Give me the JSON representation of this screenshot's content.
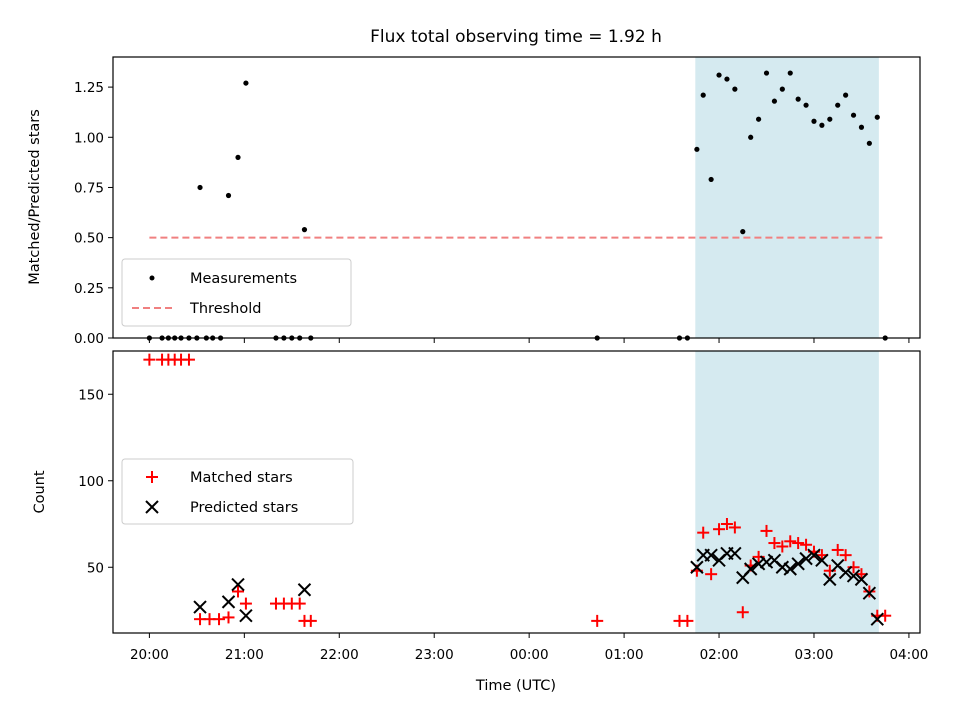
{
  "chart_data": [
    {
      "type": "scatter",
      "title": "Flux total observing time = 1.92 h",
      "xlabel": "",
      "ylabel": "Matched/Predicted stars",
      "xlim": [
        "19:37",
        "04:07"
      ],
      "ylim": [
        0,
        1.4
      ],
      "yticks": [
        0.0,
        0.25,
        0.5,
        0.75,
        1.0,
        1.25
      ],
      "ytick_labels": [
        "0.00",
        "0.25",
        "0.50",
        "0.75",
        "1.00",
        "1.25"
      ],
      "x_axis": "Time (UTC)",
      "shaded_interval": {
        "start": "01:45",
        "end": "03:41",
        "color": "#d5eaf0"
      },
      "legend": {
        "placement": "lower-left",
        "entries": [
          "Measurements",
          "Threshold"
        ]
      },
      "series": [
        {
          "name": "Measurements",
          "marker": "dot",
          "color": "#000000",
          "points": [
            [
              "20:00",
              0
            ],
            [
              "20:08",
              0
            ],
            [
              "20:12",
              0
            ],
            [
              "20:16",
              0
            ],
            [
              "20:20",
              0
            ],
            [
              "20:25",
              0
            ],
            [
              "20:30",
              0
            ],
            [
              "20:32",
              0.75
            ],
            [
              "20:36",
              0
            ],
            [
              "20:40",
              0
            ],
            [
              "20:45",
              0
            ],
            [
              "20:50",
              0.71
            ],
            [
              "20:56",
              0.9
            ],
            [
              "21:01",
              1.27
            ],
            [
              "21:20",
              0
            ],
            [
              "21:25",
              0
            ],
            [
              "21:30",
              0
            ],
            [
              "21:35",
              0
            ],
            [
              "21:38",
              0.54
            ],
            [
              "21:42",
              0
            ],
            [
              "00:43",
              0
            ],
            [
              "01:35",
              0
            ],
            [
              "01:40",
              0
            ],
            [
              "01:46",
              0.94
            ],
            [
              "01:50",
              1.21
            ],
            [
              "01:55",
              0.79
            ],
            [
              "02:00",
              1.31
            ],
            [
              "02:05",
              1.29
            ],
            [
              "02:10",
              1.24
            ],
            [
              "02:15",
              0.53
            ],
            [
              "02:20",
              1.0
            ],
            [
              "02:25",
              1.09
            ],
            [
              "02:30",
              1.32
            ],
            [
              "02:35",
              1.18
            ],
            [
              "02:40",
              1.24
            ],
            [
              "02:45",
              1.32
            ],
            [
              "02:50",
              1.19
            ],
            [
              "02:55",
              1.16
            ],
            [
              "03:00",
              1.08
            ],
            [
              "03:05",
              1.06
            ],
            [
              "03:10",
              1.09
            ],
            [
              "03:15",
              1.16
            ],
            [
              "03:20",
              1.21
            ],
            [
              "03:25",
              1.11
            ],
            [
              "03:30",
              1.05
            ],
            [
              "03:35",
              0.97
            ],
            [
              "03:40",
              1.1
            ],
            [
              "03:45",
              0
            ]
          ]
        },
        {
          "name": "Threshold",
          "marker": "dashed-line",
          "color": "#f08080",
          "points": [
            [
              "20:00",
              0.5
            ],
            [
              "03:45",
              0.5
            ]
          ]
        }
      ]
    },
    {
      "type": "scatter",
      "title": "",
      "xlabel": "Time (UTC)",
      "ylabel": "Count",
      "xlim": [
        "19:37",
        "04:07"
      ],
      "ylim": [
        12,
        175
      ],
      "yticks": [
        50,
        100,
        150
      ],
      "ytick_labels": [
        "50",
        "100",
        "150"
      ],
      "xticks": [
        "20:00",
        "21:00",
        "22:00",
        "23:00",
        "00:00",
        "01:00",
        "02:00",
        "03:00",
        "04:00"
      ],
      "shaded_interval": {
        "start": "01:45",
        "end": "03:41",
        "color": "#d5eaf0"
      },
      "legend": {
        "placement": "center-left",
        "entries": [
          "Matched stars",
          "Predicted stars"
        ]
      },
      "series": [
        {
          "name": "Matched stars",
          "marker": "plus",
          "color": "#ff0000",
          "points": [
            [
              "20:00",
              170
            ],
            [
              "20:08",
              170
            ],
            [
              "20:12",
              170
            ],
            [
              "20:16",
              170
            ],
            [
              "20:20",
              170
            ],
            [
              "20:25",
              170
            ],
            [
              "20:32",
              20
            ],
            [
              "20:38",
              20
            ],
            [
              "20:44",
              20
            ],
            [
              "20:50",
              21
            ],
            [
              "20:56",
              36
            ],
            [
              "21:01",
              29
            ],
            [
              "21:20",
              29
            ],
            [
              "21:25",
              29
            ],
            [
              "21:30",
              29
            ],
            [
              "21:35",
              29
            ],
            [
              "21:38",
              19
            ],
            [
              "21:42",
              19
            ],
            [
              "00:43",
              19
            ],
            [
              "01:35",
              19
            ],
            [
              "01:40",
              19
            ],
            [
              "01:46",
              48
            ],
            [
              "01:50",
              70
            ],
            [
              "01:55",
              46
            ],
            [
              "02:00",
              72
            ],
            [
              "02:05",
              75
            ],
            [
              "02:10",
              73
            ],
            [
              "02:15",
              24
            ],
            [
              "02:20",
              51
            ],
            [
              "02:25",
              56
            ],
            [
              "02:30",
              71
            ],
            [
              "02:35",
              64
            ],
            [
              "02:40",
              62
            ],
            [
              "02:45",
              65
            ],
            [
              "02:50",
              64
            ],
            [
              "02:55",
              63
            ],
            [
              "03:00",
              59
            ],
            [
              "03:05",
              57
            ],
            [
              "03:10",
              48
            ],
            [
              "03:15",
              60
            ],
            [
              "03:20",
              57
            ],
            [
              "03:25",
              50
            ],
            [
              "03:30",
              46
            ],
            [
              "03:35",
              36
            ],
            [
              "03:40",
              22
            ],
            [
              "03:45",
              22
            ]
          ]
        },
        {
          "name": "Predicted stars",
          "marker": "x",
          "color": "#000000",
          "points": [
            [
              "20:32",
              27
            ],
            [
              "20:50",
              30
            ],
            [
              "20:56",
              40
            ],
            [
              "21:01",
              22
            ],
            [
              "21:38",
              37
            ],
            [
              "01:46",
              50
            ],
            [
              "01:50",
              57
            ],
            [
              "01:55",
              57
            ],
            [
              "02:00",
              54
            ],
            [
              "02:05",
              58
            ],
            [
              "02:10",
              58
            ],
            [
              "02:15",
              44
            ],
            [
              "02:20",
              49
            ],
            [
              "02:25",
              52
            ],
            [
              "02:30",
              53
            ],
            [
              "02:35",
              54
            ],
            [
              "02:40",
              50
            ],
            [
              "02:45",
              49
            ],
            [
              "02:50",
              52
            ],
            [
              "02:55",
              55
            ],
            [
              "03:00",
              57
            ],
            [
              "03:05",
              54
            ],
            [
              "03:10",
              43
            ],
            [
              "03:15",
              51
            ],
            [
              "03:20",
              47
            ],
            [
              "03:25",
              45
            ],
            [
              "03:30",
              43
            ],
            [
              "03:35",
              35
            ],
            [
              "03:40",
              20
            ]
          ]
        }
      ]
    }
  ]
}
